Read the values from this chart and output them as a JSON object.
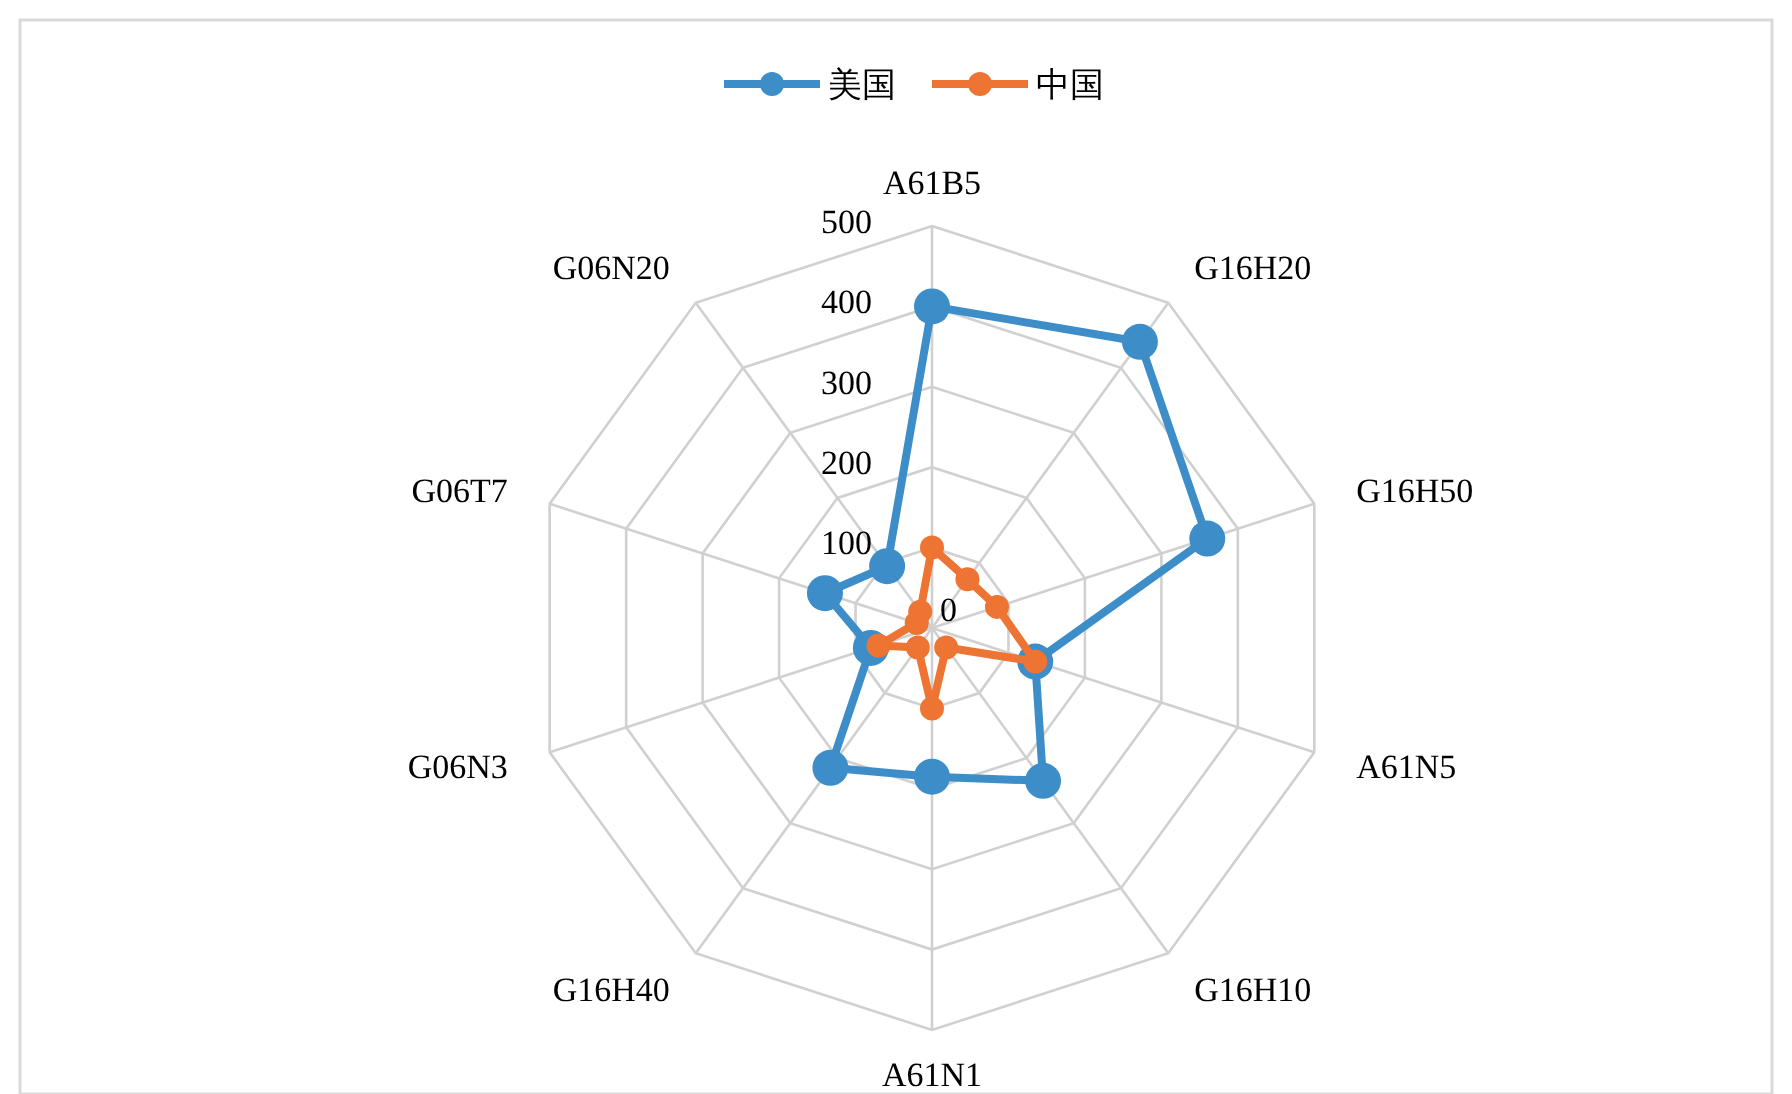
{
  "chart_data": {
    "type": "radar",
    "categories": [
      "A61B5",
      "G16H20",
      "G16H50",
      "A61N5",
      "G16H10",
      "A61N1",
      "G16H40",
      "G06N3",
      "G06T7",
      "G06N20"
    ],
    "series": [
      {
        "name": "美国",
        "color": "#3c8dc8",
        "values": [
          400,
          440,
          360,
          135,
          235,
          185,
          215,
          80,
          140,
          95
        ]
      },
      {
        "name": "中国",
        "color": "#ee7433",
        "values": [
          100,
          75,
          85,
          135,
          30,
          100,
          30,
          70,
          20,
          25
        ]
      }
    ],
    "ylim": [
      0,
      500
    ],
    "yticks": [
      0,
      100,
      200,
      300,
      400,
      500
    ],
    "grid": true,
    "legend": "top",
    "marker": "circle",
    "line_style": "solid"
  }
}
